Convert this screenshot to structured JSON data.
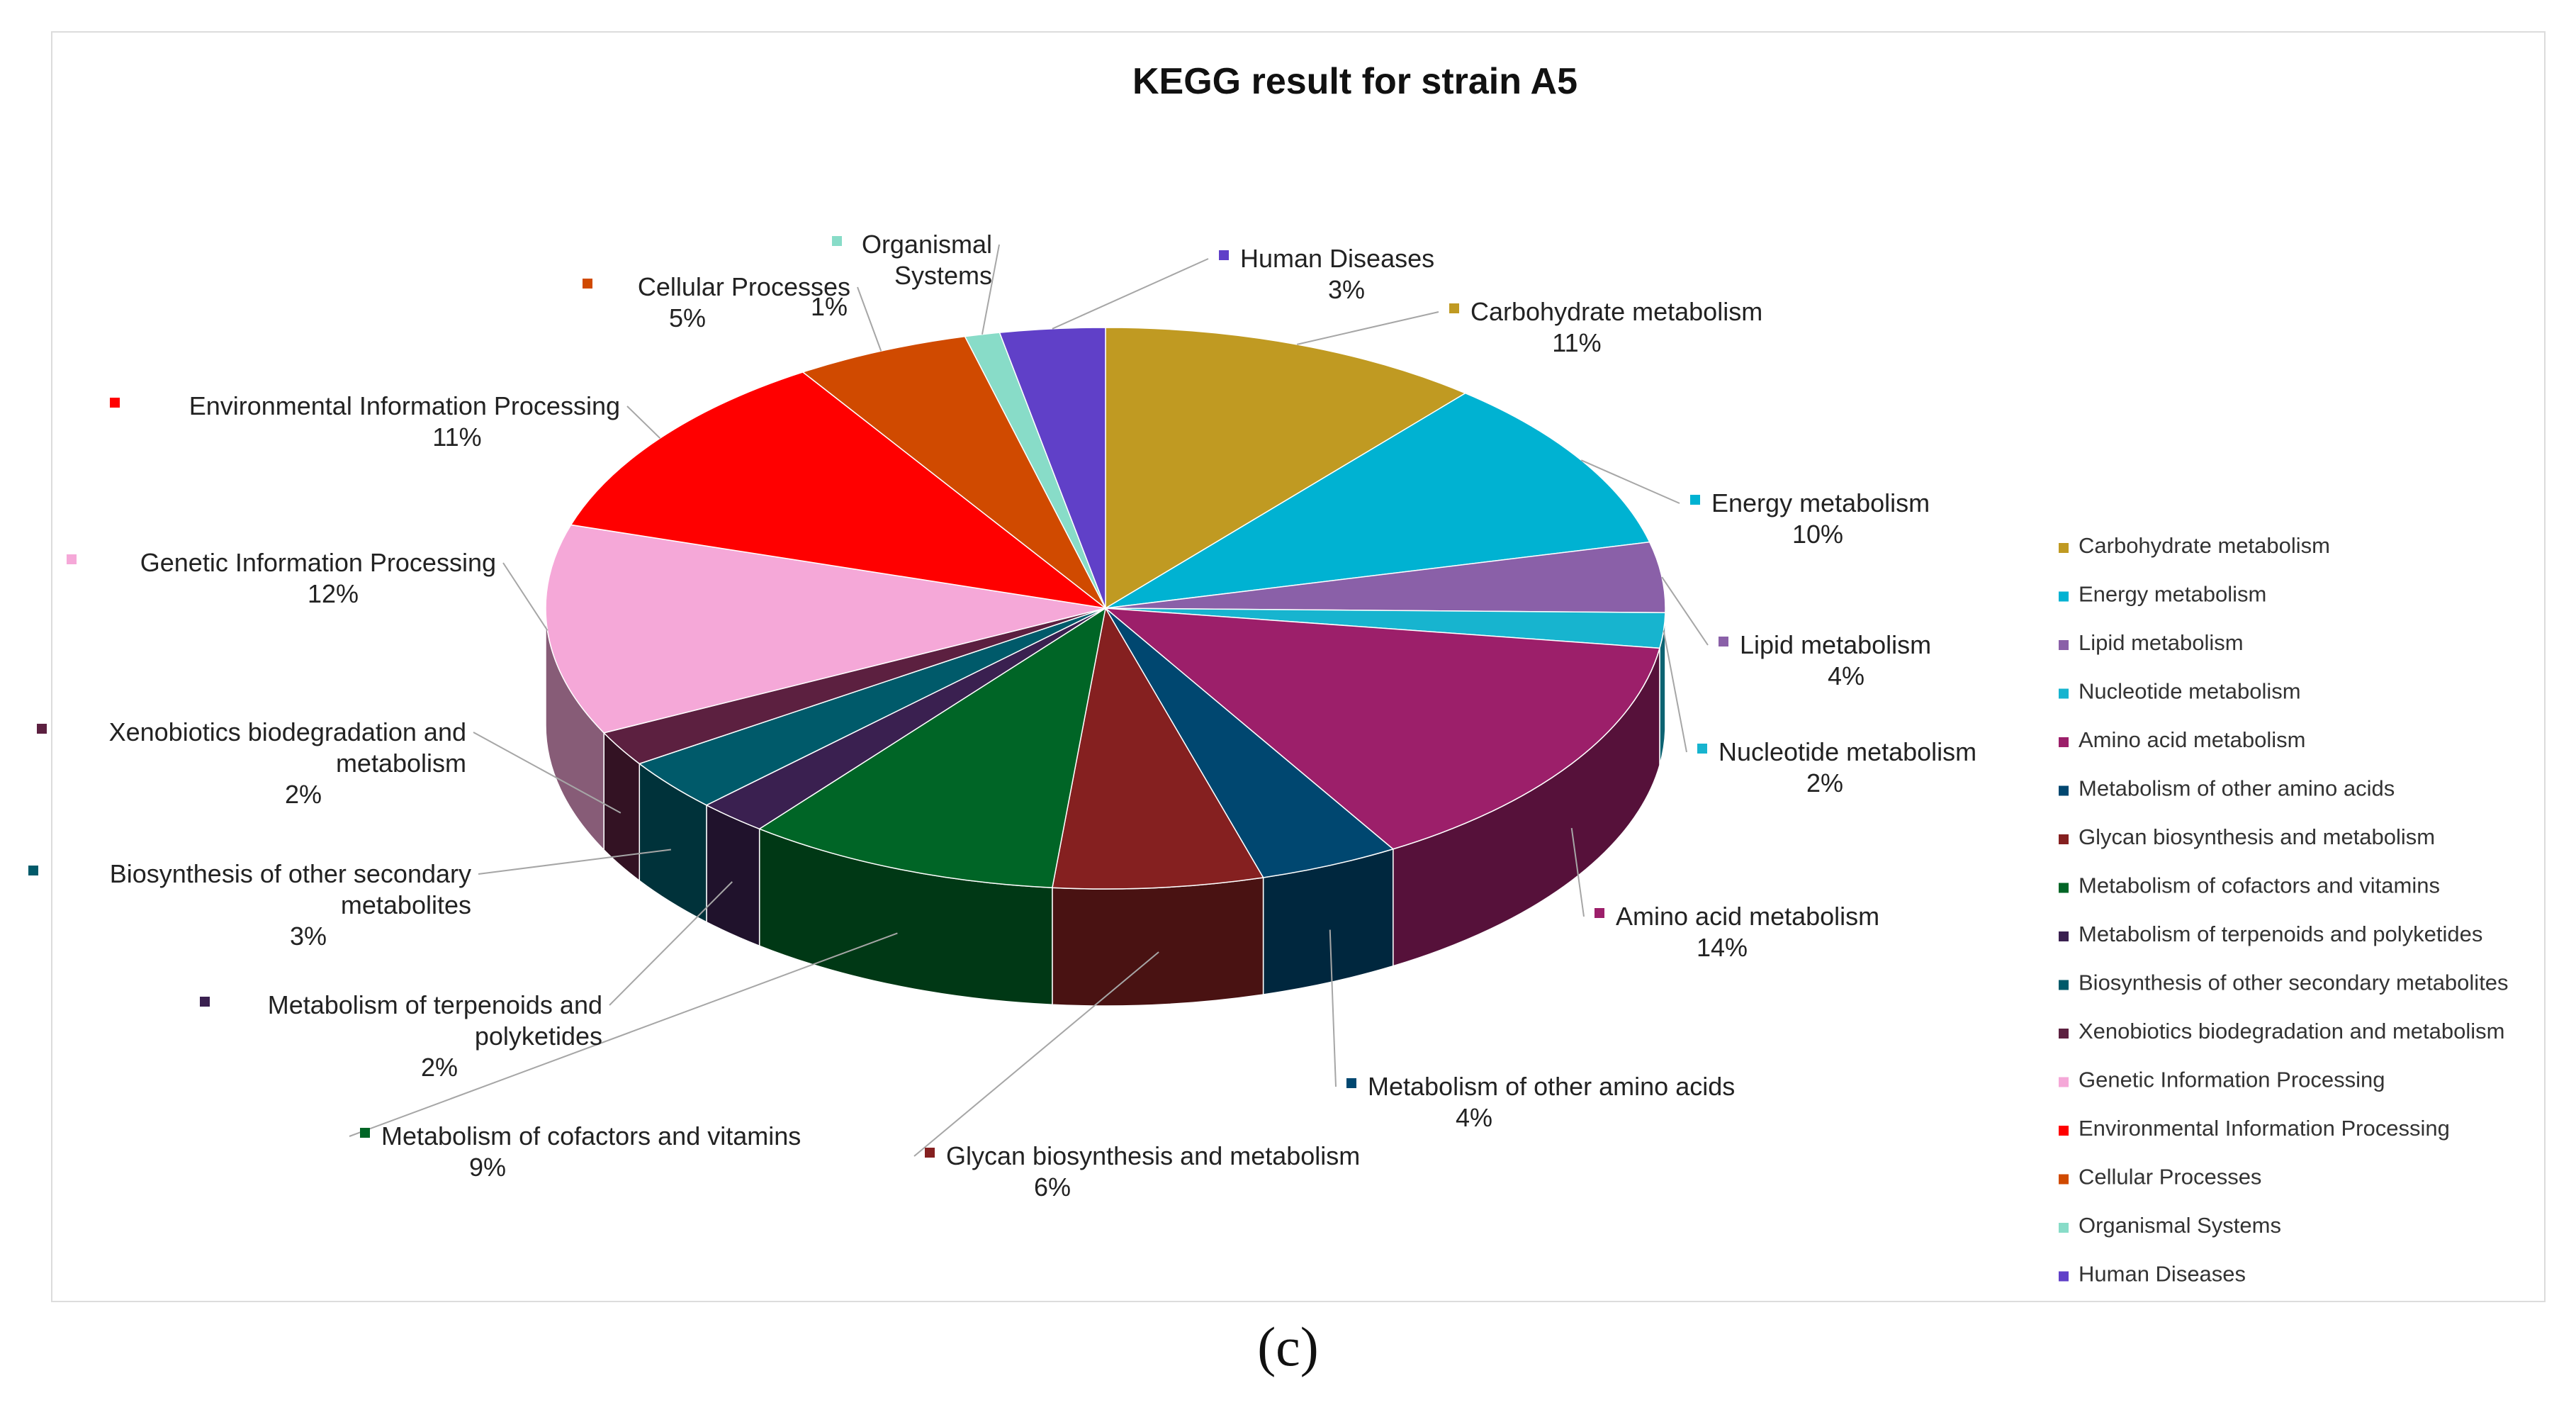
{
  "chart_data": {
    "type": "pie",
    "title": "KEGG result for strain A5",
    "legend_position": "right",
    "slices": [
      {
        "label": "Carbohydrate metabolism",
        "value": 11,
        "display": "11%",
        "color": "#c09a22"
      },
      {
        "label": "Energy metabolism",
        "value": 10,
        "display": "10%",
        "color": "#00b2d2"
      },
      {
        "label": "Lipid metabolism",
        "value": 4,
        "display": "4%",
        "color": "#8a60a8"
      },
      {
        "label": "Nucleotide metabolism",
        "value": 2,
        "display": "2%",
        "color": "#17b4cf"
      },
      {
        "label": "Amino acid metabolism",
        "value": 14,
        "display": "14%",
        "color": "#9c1f6a"
      },
      {
        "label": "Metabolism of other amino acids",
        "value": 4,
        "display": "4%",
        "color": "#004770"
      },
      {
        "label": "Glycan biosynthesis and metabolism",
        "value": 6,
        "display": "6%",
        "color": "#852020"
      },
      {
        "label": "Metabolism of cofactors and vitamins",
        "value": 9,
        "display": "9%",
        "color": "#006526"
      },
      {
        "label": "Metabolism of terpenoids and polyketides",
        "value": 2,
        "display": "2%",
        "color": "#3a2050"
      },
      {
        "label": "Biosynthesis of other secondary metabolites",
        "value": 3,
        "display": "3%",
        "color": "#005a6a"
      },
      {
        "label": "Xenobiotics biodegradation and metabolism",
        "value": 2,
        "display": "2%",
        "color": "#5c2040"
      },
      {
        "label": "Genetic Information Processing",
        "value": 12,
        "display": "12%",
        "color": "#f5a8d8"
      },
      {
        "label": "Environmental Information Processing",
        "value": 11,
        "display": "11%",
        "color": "#ff0000"
      },
      {
        "label": "Cellular Processes",
        "value": 5,
        "display": "5%",
        "color": "#d04a00"
      },
      {
        "label": "Organismal Systems",
        "value": 1,
        "display": "1%",
        "color": "#88dcc8"
      },
      {
        "label": "Human Diseases",
        "value": 3,
        "display": "3%",
        "color": "#6040c8"
      }
    ]
  },
  "caption": "(c)"
}
